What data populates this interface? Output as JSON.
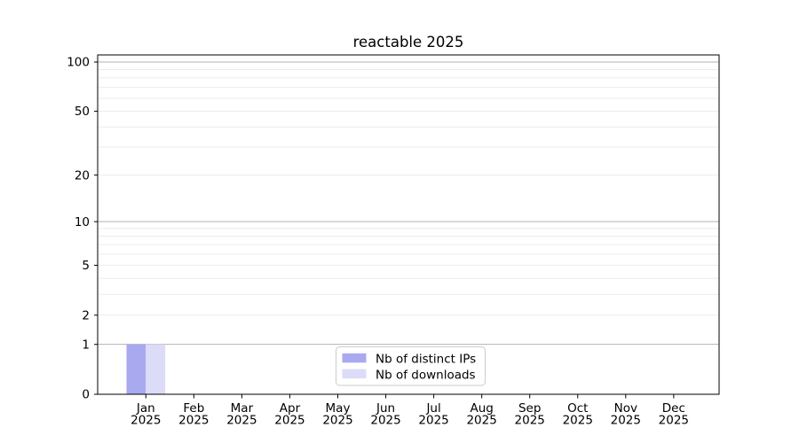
{
  "chart_data": {
    "type": "bar",
    "title": "reactable 2025",
    "categories": [
      {
        "month": "Jan",
        "year": "2025"
      },
      {
        "month": "Feb",
        "year": "2025"
      },
      {
        "month": "Mar",
        "year": "2025"
      },
      {
        "month": "Apr",
        "year": "2025"
      },
      {
        "month": "May",
        "year": "2025"
      },
      {
        "month": "Jun",
        "year": "2025"
      },
      {
        "month": "Jul",
        "year": "2025"
      },
      {
        "month": "Aug",
        "year": "2025"
      },
      {
        "month": "Sep",
        "year": "2025"
      },
      {
        "month": "Oct",
        "year": "2025"
      },
      {
        "month": "Nov",
        "year": "2025"
      },
      {
        "month": "Dec",
        "year": "2025"
      }
    ],
    "series": [
      {
        "name": "Nb of distinct IPs",
        "color": "#a9a9f0",
        "values": [
          1,
          0,
          0,
          0,
          0,
          0,
          0,
          0,
          0,
          0,
          0,
          0
        ]
      },
      {
        "name": "Nb of downloads",
        "color": "#dcdcf8",
        "values": [
          1,
          0,
          0,
          0,
          0,
          0,
          0,
          0,
          0,
          0,
          0,
          0
        ]
      }
    ],
    "y_axis": {
      "scale": "log1p",
      "ylim": [
        0,
        100
      ],
      "tick_values": [
        0,
        1,
        2,
        5,
        10,
        20,
        50,
        100
      ],
      "tick_labels": [
        "0",
        "1",
        "2",
        "5",
        "10",
        "20",
        "50",
        "100"
      ],
      "major_gridlines": [
        1,
        10,
        100
      ],
      "minor_gridlines": [
        2,
        3,
        4,
        5,
        6,
        7,
        8,
        9,
        20,
        30,
        40,
        50,
        60,
        70,
        80,
        90
      ]
    },
    "legend": {
      "position": "lower center",
      "entries": [
        "Nb of distinct IPs",
        "Nb of downloads"
      ]
    },
    "style": {
      "grid_major_color": "#b3b3b3",
      "grid_minor_color": "#ebebeb",
      "axis_color": "#000000",
      "text_color": "#000000",
      "legend_border_color": "#cccccc",
      "legend_background_color": "#ffffff",
      "background_color": "#ffffff"
    }
  }
}
